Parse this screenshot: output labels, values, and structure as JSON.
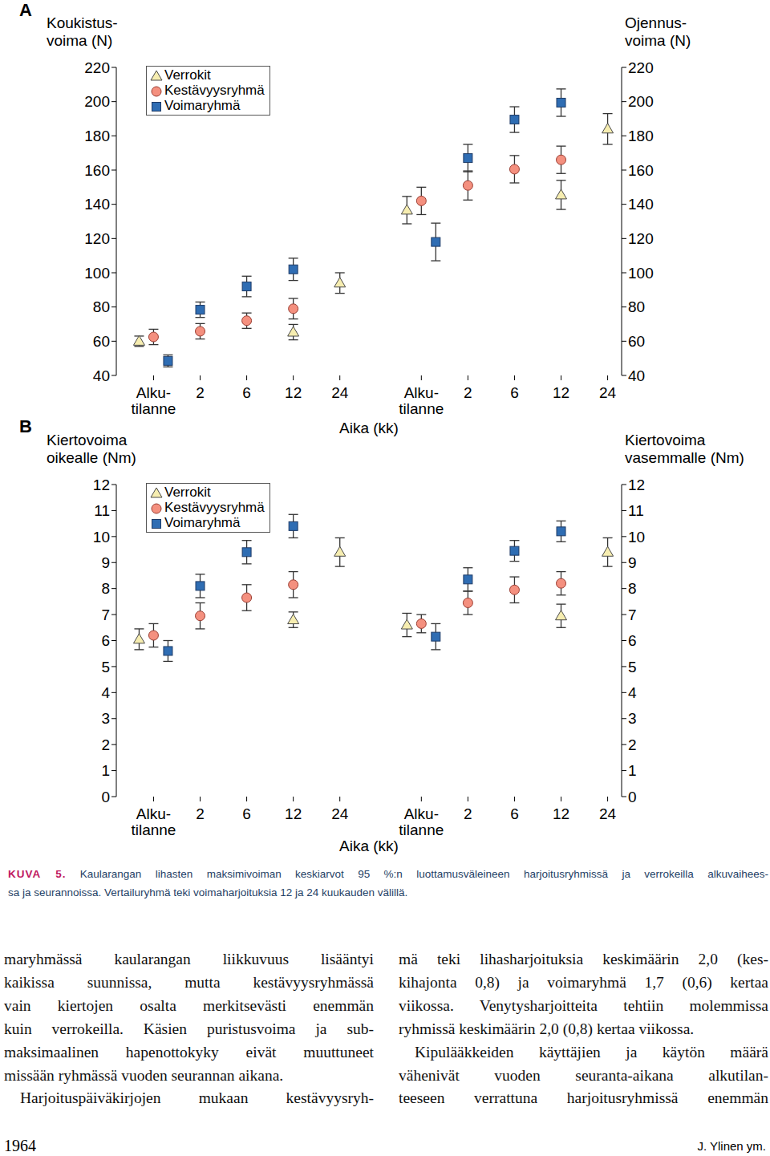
{
  "chart_data": [
    {
      "type": "scatter",
      "title": "A",
      "x_label": "Aika (kk)",
      "y_label": "Koukistus-\nvoima (N)",
      "y2_label": "Ojennus-\nvoima (N)",
      "legend": "top left",
      "categories": [
        "Alku-\ntilanne",
        "2",
        "6",
        "12",
        "24"
      ],
      "ylim": [
        40,
        220
      ],
      "yticks": [
        40,
        60,
        80,
        100,
        120,
        140,
        160,
        180,
        200,
        220
      ],
      "y2lim": [
        40,
        220
      ],
      "y2ticks": [
        40,
        60,
        80,
        100,
        120,
        140,
        160,
        180,
        200,
        220
      ],
      "series": [
        {
          "name": "Verrokit",
          "color": "#f6edb0",
          "marker": "triangle",
          "values": [
            60,
            null,
            null,
            65.3,
            94
          ],
          "error": [
            3,
            null,
            null,
            4.5,
            6
          ]
        },
        {
          "name": "Kestävyysryhmä",
          "color": "#f4907f",
          "marker": "circle",
          "values": [
            62.5,
            65.8,
            72,
            79,
            null
          ],
          "error": [
            4.5,
            4.5,
            4.5,
            6,
            null
          ]
        },
        {
          "name": "Voimaryhmä",
          "color": "#2f6db3",
          "marker": "square",
          "values": [
            48.5,
            78.4,
            92,
            102,
            null
          ],
          "error": [
            3.5,
            4.5,
            6,
            6.5,
            null
          ]
        },
        {
          "name": "Verrokit",
          "color": "#f6edb0",
          "marker": "triangle",
          "axis": "y2",
          "values": [
            136.6,
            null,
            null,
            145.5,
            184
          ],
          "error": [
            8,
            null,
            null,
            8.5,
            9
          ]
        },
        {
          "name": "Kestävyysryhmä",
          "color": "#f4907f",
          "marker": "circle",
          "axis": "y2",
          "values": [
            142,
            151,
            160.5,
            166,
            null
          ],
          "error": [
            8,
            8.5,
            8,
            8,
            null
          ]
        },
        {
          "name": "Voimaryhmä",
          "color": "#2f6db3",
          "marker": "square",
          "axis": "y2",
          "values": [
            118,
            167,
            189.5,
            199.4,
            null
          ],
          "error": [
            11,
            8,
            7.5,
            8,
            null
          ]
        }
      ]
    },
    {
      "type": "scatter",
      "title": "B",
      "x_label": "Aika (kk)",
      "y_label": "Kiertovoima\noikealle (Nm)",
      "y2_label": "Kiertovoima\nvasemmalle (Nm)",
      "legend": "top left",
      "categories": [
        "Alku-\ntilanne",
        "2",
        "6",
        "12",
        "24"
      ],
      "ylim": [
        0,
        12
      ],
      "yticks": [
        0,
        1,
        2,
        3,
        4,
        5,
        6,
        7,
        8,
        9,
        10,
        11,
        12
      ],
      "y2lim": [
        0,
        12
      ],
      "y2ticks": [
        0,
        1,
        2,
        3,
        4,
        5,
        6,
        7,
        8,
        9,
        10,
        11,
        12
      ],
      "series": [
        {
          "name": "Verrokit",
          "color": "#f6edb0",
          "marker": "triangle",
          "values": [
            6.05,
            null,
            null,
            6.8,
            9.4
          ],
          "error": [
            0.4,
            null,
            null,
            0.3,
            0.55
          ]
        },
        {
          "name": "Kestävyysryhmä",
          "color": "#f4907f",
          "marker": "circle",
          "values": [
            6.2,
            6.95,
            7.65,
            8.15,
            null
          ],
          "error": [
            0.45,
            0.5,
            0.5,
            0.5,
            null
          ]
        },
        {
          "name": "Voimaryhmä",
          "color": "#2f6db3",
          "marker": "square",
          "values": [
            5.6,
            8.1,
            9.4,
            10.4,
            null
          ],
          "error": [
            0.4,
            0.45,
            0.45,
            0.45,
            null
          ]
        },
        {
          "name": "Verrokit",
          "color": "#f6edb0",
          "marker": "triangle",
          "axis": "y2",
          "values": [
            6.6,
            null,
            null,
            6.95,
            9.4
          ],
          "error": [
            0.45,
            null,
            null,
            0.45,
            0.55
          ]
        },
        {
          "name": "Kestävyysryhmä",
          "color": "#f4907f",
          "marker": "circle",
          "axis": "y2",
          "values": [
            6.65,
            7.45,
            7.95,
            8.2,
            null
          ],
          "error": [
            0.35,
            0.45,
            0.5,
            0.45,
            null
          ]
        },
        {
          "name": "Voimaryhmä",
          "color": "#2f6db3",
          "marker": "square",
          "axis": "y2",
          "values": [
            6.15,
            8.35,
            9.45,
            10.2,
            null
          ],
          "error": [
            0.5,
            0.45,
            0.4,
            0.4,
            null
          ]
        }
      ]
    }
  ],
  "caption": {
    "label": "KUVA 5.",
    "lines": [
      "Kaularangan lihasten maksimivoiman keskiarvot 95 %:n luottamusväleineen harjoitusryhmissä ja verrokeilla alkuvaihees-",
      "sa ja seurannoissa. Vertailuryhmä teki voimaharjoituksia 12 ja 24 kuukauden välillä."
    ]
  },
  "body": {
    "columns": [
      [
        [
          "maryhmässä kaularangan liikkuvuus lisääntyi",
          "kaikissa suunnissa, mutta kestävyysryhmässä",
          "vain kiertojen osalta merkitsevästi enemmän",
          "kuin verrokeilla. Käsien puristusvoima ja sub-",
          "maksimaalinen hapenottokyky eivät muuttuneet",
          "missään ryhmässä vuoden seurannan aikana."
        ],
        [
          "Harjoituspäiväkirjojen mukaan kestävyysryh-"
        ]
      ],
      [
        [
          "mä teki lihasharjoituksia keskimäärin 2,0 (kes-",
          "kihajonta 0,8) ja voimaryhmä 1,7 (0,6) kertaa",
          "viikossa. Venytysharjoitteita tehtiin molemmissa",
          "ryhmissä keskimäärin 2,0 (0,8) kertaa viikossa."
        ],
        [
          "Kipulääkkeiden käyttäjien ja käytön määrä",
          "vähenivät vuoden seuranta-aikana alkutilan-",
          "teeseen verrattuna harjoitusryhmissä enemmän"
        ]
      ]
    ]
  },
  "footer": {
    "page": "1964",
    "authors": "J. Ylinen ym."
  }
}
